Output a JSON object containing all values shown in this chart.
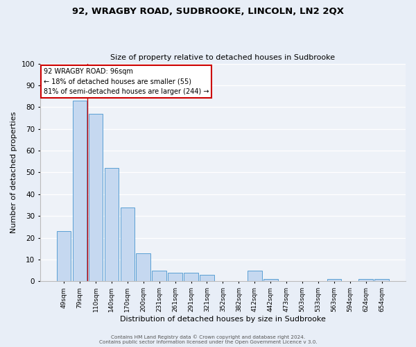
{
  "title": "92, WRAGBY ROAD, SUDBROOKE, LINCOLN, LN2 2QX",
  "subtitle": "Size of property relative to detached houses in Sudbrooke",
  "xlabel": "Distribution of detached houses by size in Sudbrooke",
  "ylabel": "Number of detached properties",
  "bar_labels": [
    "49sqm",
    "79sqm",
    "110sqm",
    "140sqm",
    "170sqm",
    "200sqm",
    "231sqm",
    "261sqm",
    "291sqm",
    "321sqm",
    "352sqm",
    "382sqm",
    "412sqm",
    "442sqm",
    "473sqm",
    "503sqm",
    "533sqm",
    "563sqm",
    "594sqm",
    "624sqm",
    "654sqm"
  ],
  "bar_values": [
    23,
    83,
    77,
    52,
    34,
    13,
    5,
    4,
    4,
    3,
    0,
    0,
    5,
    1,
    0,
    0,
    0,
    1,
    0,
    1,
    1
  ],
  "bar_color": "#c5d8f0",
  "bar_edge_color": "#5a9fd4",
  "ylim": [
    0,
    100
  ],
  "yticks": [
    0,
    10,
    20,
    30,
    40,
    50,
    60,
    70,
    80,
    90,
    100
  ],
  "red_line_x": 1.5,
  "annotation_title": "92 WRAGBY ROAD: 96sqm",
  "annotation_line1": "← 18% of detached houses are smaller (55)",
  "annotation_line2": "81% of semi-detached houses are larger (244) →",
  "annotation_box_color": "#ffffff",
  "annotation_box_edge_color": "#cc0000",
  "footer_line1": "Contains HM Land Registry data © Crown copyright and database right 2024.",
  "footer_line2": "Contains public sector information licensed under the Open Government Licence v 3.0.",
  "bg_color": "#e8eef7",
  "plot_bg_color": "#eef2f8"
}
